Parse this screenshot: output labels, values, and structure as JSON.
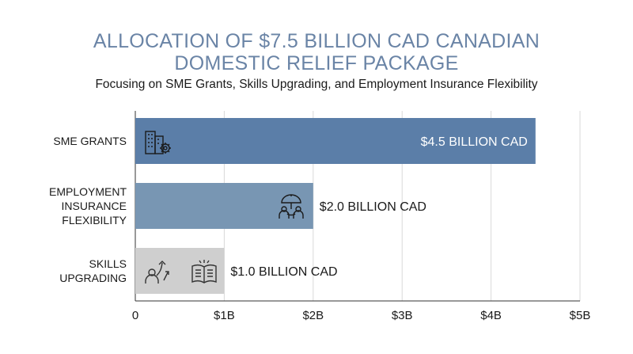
{
  "chart_data": {
    "type": "bar",
    "orientation": "horizontal",
    "title_line1": "ALLOCATION OF $7.5 BILLION CAD CANADIAN",
    "title_line2": "DOMESTIC RELIEF PACKAGE",
    "subtitle": "Focusing on SME Grants, Skills Upgrading, and Employment Insurance Flexibility",
    "categories": [
      "SME GRANTS",
      "EMPLOYMENT INSURANCE FLEXIBILITY",
      "SKILLS UPGRADING"
    ],
    "category_lines": [
      [
        "SME GRANTS"
      ],
      [
        "EMPLOYMENT",
        "INSURANCE",
        "FLEXIBILITY"
      ],
      [
        "SKILLS",
        "UPGRADING"
      ]
    ],
    "values": [
      4.5,
      2.0,
      1.0
    ],
    "value_labels": [
      "$4.5 BILLION CAD",
      "$2.0 BILLION CAD",
      "$1.0 BILLION CAD"
    ],
    "bar_colors": [
      "#5b7ea8",
      "#7896b3",
      "#cfcfcf"
    ],
    "bar_icons": [
      [
        "building-gear-icon"
      ],
      [
        "umbrella-people-icon"
      ],
      [
        "person-growth-icon",
        "open-book-icon"
      ]
    ],
    "xlim": [
      0,
      5
    ],
    "xticks": [
      0,
      1,
      2,
      3,
      4,
      5
    ],
    "xtick_labels": [
      "0",
      "$1B",
      "$2B",
      "$3B",
      "$4B",
      "$5B"
    ],
    "xlabel": "",
    "ylabel": "",
    "grid": true,
    "legend": "none"
  }
}
